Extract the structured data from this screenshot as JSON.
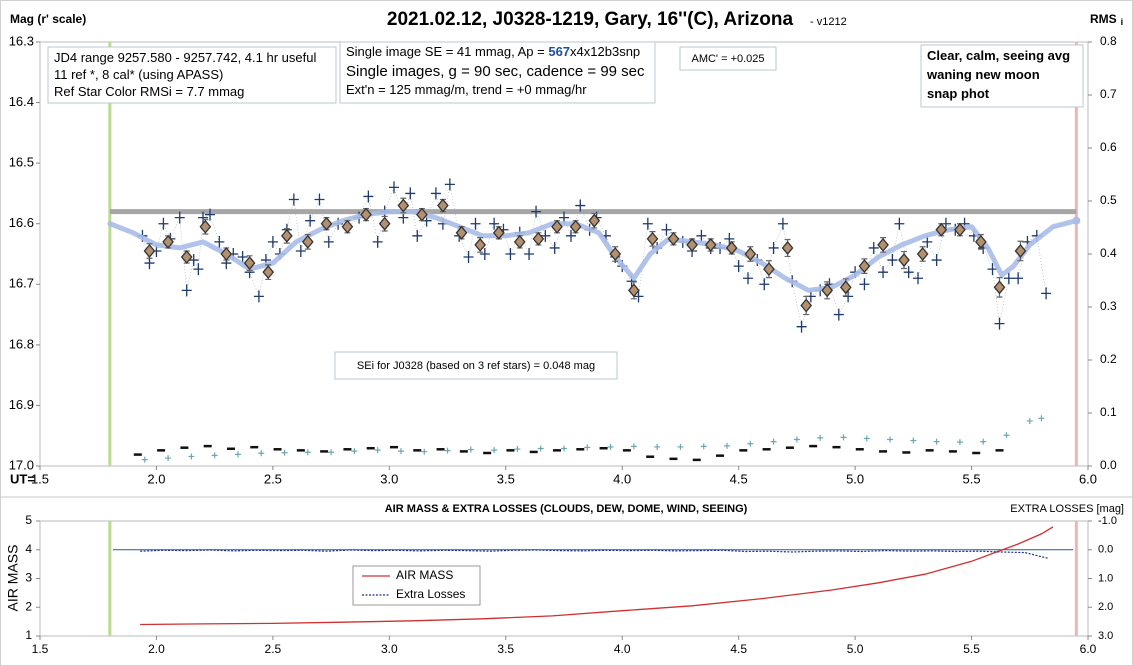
{
  "chart_data": [
    {
      "type": "scatter",
      "title": "2021.02.12, J0328-1219, Gary, 16''(C), Arizona",
      "version": "- v1212",
      "y_label": "Mag (r' scale)",
      "y2_label": "RMS",
      "y2_label_sub": "i",
      "x_label": "UT=",
      "xlim": [
        1.5,
        6.0
      ],
      "xticks": [
        1.5,
        {
          "value": 2,
          "label": "2.0"
        },
        2.5,
        {
          "value": 3,
          "label": "3.0"
        },
        3.5,
        {
          "value": 4,
          "label": "4.0"
        },
        4.5,
        {
          "value": 5,
          "label": "5.0"
        },
        5.5,
        {
          "value": 6,
          "label": "6.0"
        }
      ],
      "ylim": [
        16.3,
        17.0
      ],
      "y_inverted": true,
      "yticks": [
        16.3,
        16.4,
        16.5,
        16.6,
        16.7,
        16.8,
        16.9,
        {
          "value": 17,
          "label": "17.0"
        }
      ],
      "y2lim": [
        0,
        0.8
      ],
      "y2ticks": [
        {
          "value": 0,
          "label": "0.0"
        },
        0.1,
        0.2,
        0.3,
        0.4,
        0.5,
        0.6,
        0.7,
        0.8
      ],
      "start_ut": 1.8,
      "end_ut": 5.95,
      "reference_level": 16.58,
      "annotations": [
        {
          "lines": [
            [
              "JD4 range 9257.580 - 9257.742, 4.1 hr useful"
            ],
            [
              " 11 ref *, 8 cal* (using APASS)"
            ],
            [
              "Ref Star Color RMSi = 7.7 mmag"
            ]
          ]
        },
        {
          "lines": [
            [
              "Single image SE = 41 mmag, Ap = ",
              {
                "text": "567",
                "color": "#1f4e9c"
              },
              "x4x12b3snp"
            ],
            [
              "Single images, g = 90 sec, cadence = 99 sec"
            ],
            [
              "Ext'n = 125 mmag/m, trend = +0 mmag/hr"
            ]
          ]
        },
        {
          "lines": [
            [
              "AMC' = +0.025"
            ]
          ]
        },
        {
          "lines": [
            [
              "Clear, calm, seeing avg"
            ],
            [
              "waning new moon"
            ],
            [
              "snap phot"
            ]
          ]
        },
        {
          "lines": [
            [
              "SEi for J0328 (based on 3 ref stars) = 0.048 mag"
            ]
          ]
        }
      ],
      "series": [
        {
          "style": "cross",
          "color": "#1f3a6e",
          "x": [
            1.94,
            1.97,
            2.0,
            2.03,
            2.06,
            2.1,
            2.13,
            2.16,
            2.18,
            2.2,
            2.23,
            2.27,
            2.3,
            2.33,
            2.37,
            2.4,
            2.44,
            2.47,
            2.5,
            2.53,
            2.56,
            2.59,
            2.62,
            2.66,
            2.7,
            2.74,
            2.78,
            2.82,
            2.87,
            2.91,
            2.95,
            2.98,
            3.02,
            3.06,
            3.09,
            3.12,
            3.16,
            3.2,
            3.23,
            3.26,
            3.3,
            3.34,
            3.37,
            3.41,
            3.45,
            3.49,
            3.52,
            3.56,
            3.6,
            3.63,
            3.67,
            3.71,
            3.75,
            3.78,
            3.82,
            3.86,
            3.89,
            3.93,
            3.97,
            4.0,
            4.04,
            4.07,
            4.11,
            4.15,
            4.19,
            4.22,
            4.26,
            4.3,
            4.34,
            4.38,
            4.42,
            4.46,
            4.5,
            4.54,
            4.58,
            4.61,
            4.65,
            4.69,
            4.73,
            4.77,
            4.81,
            4.85,
            4.89,
            4.93,
            4.97,
            5.0,
            5.04,
            5.08,
            5.12,
            5.16,
            5.19,
            5.23,
            5.27,
            5.31,
            5.35,
            5.39,
            5.43,
            5.47,
            5.51,
            5.55,
            5.59,
            5.62,
            5.66,
            5.7,
            5.74,
            5.78,
            5.82
          ],
          "values": [
            16.62,
            16.665,
            16.645,
            16.6,
            16.625,
            16.59,
            16.71,
            16.66,
            16.675,
            16.59,
            16.585,
            16.63,
            16.665,
            16.65,
            16.655,
            16.68,
            16.72,
            16.66,
            16.63,
            16.65,
            16.61,
            16.56,
            16.645,
            16.595,
            16.56,
            16.63,
            16.6,
            16.605,
            16.59,
            16.555,
            16.63,
            16.58,
            16.54,
            16.59,
            16.55,
            16.62,
            16.595,
            16.55,
            16.6,
            16.535,
            16.62,
            16.655,
            16.6,
            16.65,
            16.6,
            16.61,
            16.65,
            16.615,
            16.65,
            16.58,
            16.62,
            16.64,
            16.59,
            16.62,
            16.57,
            16.61,
            16.59,
            16.62,
            16.655,
            16.67,
            16.695,
            16.72,
            16.6,
            16.64,
            16.61,
            16.625,
            16.63,
            16.645,
            16.62,
            16.64,
            16.64,
            16.625,
            16.67,
            16.69,
            16.66,
            16.7,
            16.64,
            16.6,
            16.695,
            16.77,
            16.72,
            16.71,
            16.7,
            16.75,
            16.72,
            16.68,
            16.7,
            16.64,
            16.68,
            16.66,
            16.6,
            16.68,
            16.69,
            16.63,
            16.66,
            16.6,
            16.61,
            16.6,
            16.62,
            16.64,
            16.675,
            16.765,
            16.69,
            16.69,
            16.63,
            16.62,
            16.715
          ]
        },
        {
          "style": "curve",
          "color": "#a9bde8",
          "x": [
            1.8,
            1.9,
            2.0,
            2.1,
            2.2,
            2.3,
            2.4,
            2.5,
            2.6,
            2.7,
            2.8,
            2.9,
            3.0,
            3.1,
            3.2,
            3.3,
            3.4,
            3.5,
            3.6,
            3.7,
            3.8,
            3.9,
            3.97,
            4.05,
            4.12,
            4.2,
            4.3,
            4.4,
            4.5,
            4.6,
            4.7,
            4.8,
            4.9,
            5.0,
            5.1,
            5.2,
            5.3,
            5.4,
            5.5,
            5.57,
            5.63,
            5.68,
            5.75,
            5.85,
            5.95
          ],
          "values": [
            16.6,
            16.615,
            16.635,
            16.64,
            16.63,
            16.65,
            16.675,
            16.665,
            16.63,
            16.61,
            16.595,
            16.585,
            16.58,
            16.58,
            16.59,
            16.605,
            16.62,
            16.62,
            16.615,
            16.6,
            16.6,
            16.615,
            16.655,
            16.69,
            16.65,
            16.625,
            16.63,
            16.635,
            16.645,
            16.665,
            16.69,
            16.71,
            16.705,
            16.685,
            16.655,
            16.635,
            16.62,
            16.61,
            16.605,
            16.64,
            16.685,
            16.67,
            16.635,
            16.605,
            16.595
          ]
        },
        {
          "style": "diamond",
          "color": "#b5906e",
          "x": [
            1.97,
            2.05,
            2.13,
            2.21,
            2.3,
            2.4,
            2.48,
            2.56,
            2.65,
            2.73,
            2.82,
            2.9,
            2.98,
            3.06,
            3.14,
            3.23,
            3.31,
            3.39,
            3.47,
            3.56,
            3.64,
            3.72,
            3.8,
            3.88,
            3.97,
            4.05,
            4.13,
            4.22,
            4.3,
            4.38,
            4.47,
            4.55,
            4.63,
            4.71,
            4.79,
            4.88,
            4.96,
            5.04,
            5.12,
            5.21,
            5.29,
            5.37,
            5.45,
            5.54,
            5.62,
            5.71
          ],
          "values": [
            16.645,
            16.63,
            16.655,
            16.605,
            16.65,
            16.665,
            16.68,
            16.62,
            16.63,
            16.6,
            16.605,
            16.585,
            16.6,
            16.57,
            16.585,
            16.57,
            16.615,
            16.635,
            16.615,
            16.63,
            16.625,
            16.605,
            16.605,
            16.595,
            16.65,
            16.71,
            16.625,
            16.625,
            16.635,
            16.635,
            16.64,
            16.65,
            16.675,
            16.64,
            16.735,
            16.71,
            16.705,
            16.67,
            16.635,
            16.66,
            16.65,
            16.61,
            16.61,
            16.63,
            16.705,
            16.645
          ],
          "errors": [
            0.012,
            0.01,
            0.01,
            0.012,
            0.01,
            0.012,
            0.012,
            0.012,
            0.012,
            0.01,
            0.01,
            0.01,
            0.012,
            0.012,
            0.01,
            0.01,
            0.01,
            0.012,
            0.01,
            0.01,
            0.01,
            0.01,
            0.01,
            0.012,
            0.012,
            0.014,
            0.012,
            0.01,
            0.01,
            0.01,
            0.01,
            0.012,
            0.014,
            0.014,
            0.015,
            0.014,
            0.014,
            0.012,
            0.012,
            0.014,
            0.012,
            0.01,
            0.01,
            0.012,
            0.016,
            0.016
          ]
        },
        {
          "style": "rms-cross",
          "color": "#6aa8b0",
          "axis": "y2",
          "x": [
            1.95,
            2.05,
            2.15,
            2.25,
            2.35,
            2.45,
            2.55,
            2.65,
            2.75,
            2.85,
            2.95,
            3.05,
            3.15,
            3.25,
            3.35,
            3.45,
            3.55,
            3.65,
            3.75,
            3.85,
            3.95,
            4.05,
            4.15,
            4.25,
            4.35,
            4.45,
            4.55,
            4.65,
            4.75,
            4.85,
            4.95,
            5.05,
            5.15,
            5.25,
            5.35,
            5.45,
            5.55,
            5.65,
            5.75,
            5.8
          ],
          "values": [
            0.012,
            0.015,
            0.018,
            0.02,
            0.022,
            0.024,
            0.025,
            0.026,
            0.026,
            0.028,
            0.03,
            0.028,
            0.027,
            0.029,
            0.031,
            0.03,
            0.032,
            0.033,
            0.033,
            0.035,
            0.036,
            0.037,
            0.036,
            0.036,
            0.037,
            0.038,
            0.042,
            0.046,
            0.05,
            0.053,
            0.054,
            0.052,
            0.05,
            0.048,
            0.046,
            0.045,
            0.046,
            0.058,
            0.085,
            0.09
          ]
        },
        {
          "style": "rms-dash",
          "color": "#111111",
          "axis": "y2",
          "x": [
            1.92,
            2.02,
            2.12,
            2.22,
            2.32,
            2.42,
            2.52,
            2.62,
            2.72,
            2.82,
            2.92,
            3.02,
            3.12,
            3.22,
            3.32,
            3.42,
            3.52,
            3.62,
            3.72,
            3.82,
            3.92,
            4.02,
            4.12,
            4.22,
            4.32,
            4.42,
            4.52,
            4.62,
            4.72,
            4.82,
            4.92,
            5.02,
            5.12,
            5.22,
            5.32,
            5.42,
            5.52,
            5.62
          ],
          "values": [
            0.022,
            0.03,
            0.035,
            0.038,
            0.033,
            0.036,
            0.032,
            0.03,
            0.028,
            0.032,
            0.034,
            0.036,
            0.03,
            0.032,
            0.028,
            0.025,
            0.03,
            0.027,
            0.03,
            0.032,
            0.034,
            0.03,
            0.018,
            0.014,
            0.012,
            0.02,
            0.03,
            0.032,
            0.035,
            0.038,
            0.036,
            0.032,
            0.028,
            0.026,
            0.03,
            0.028,
            0.025,
            0.03
          ]
        }
      ]
    },
    {
      "type": "line",
      "title": "AIR MASS & EXTRA LOSSES (CLOUDS, DEW, DOME, WIND, SEEING)",
      "y_label": "AIR MASS",
      "y2_label": "EXTRA LOSSES [mag]",
      "xlim": [
        1.5,
        6.0
      ],
      "xticks": [
        1.5,
        {
          "value": 2,
          "label": "2.0"
        },
        2.5,
        {
          "value": 3,
          "label": "3.0"
        },
        3.5,
        {
          "value": 4,
          "label": "4.0"
        },
        4.5,
        {
          "value": 5,
          "label": "5.0"
        },
        5.5,
        {
          "value": 6,
          "label": "6.0"
        }
      ],
      "ylim": [
        1,
        5
      ],
      "yticks": [
        1,
        2,
        3,
        4,
        5
      ],
      "y2lim": [
        -1,
        3
      ],
      "y2_inverted": true,
      "y2ticks": [
        {
          "value": -1,
          "label": "-1.0"
        },
        {
          "value": 0,
          "label": "0.0"
        },
        {
          "value": 1,
          "label": "1.0"
        },
        {
          "value": 2,
          "label": "2.0"
        },
        {
          "value": 3,
          "label": "3.0"
        }
      ],
      "start_ut": 1.8,
      "end_ut": 5.95,
      "series": [
        {
          "name": "AIR MASS",
          "color": "#d03030",
          "x": [
            1.93,
            2.2,
            2.5,
            2.8,
            3.1,
            3.4,
            3.7,
            4.0,
            4.3,
            4.6,
            4.9,
            5.1,
            5.3,
            5.5,
            5.6,
            5.7,
            5.8,
            5.85
          ],
          "values": [
            1.4,
            1.42,
            1.44,
            1.48,
            1.53,
            1.6,
            1.7,
            1.88,
            2.05,
            2.3,
            2.6,
            2.85,
            3.15,
            3.6,
            3.9,
            4.2,
            4.55,
            4.8
          ]
        },
        {
          "name": "Extra Losses",
          "color": "#1f2f8f",
          "axis": "y2",
          "x": [
            1.93,
            2.03,
            2.13,
            2.23,
            2.33,
            2.43,
            2.53,
            2.63,
            2.73,
            2.83,
            2.93,
            3.03,
            3.13,
            3.23,
            3.33,
            3.43,
            3.53,
            3.63,
            3.73,
            3.83,
            3.93,
            4.03,
            4.13,
            4.23,
            4.33,
            4.43,
            4.53,
            4.63,
            4.73,
            4.83,
            4.93,
            5.03,
            5.13,
            5.23,
            5.33,
            5.43,
            5.53,
            5.63,
            5.73,
            5.83
          ],
          "values": [
            0.05,
            0.02,
            0.03,
            0.01,
            0.04,
            0.02,
            0.03,
            0.02,
            0.05,
            0.01,
            0.03,
            0.02,
            0.04,
            0.02,
            0.03,
            0.05,
            0.02,
            0.01,
            0.03,
            0.04,
            0.02,
            0.03,
            0.02,
            0.04,
            0.03,
            0.02,
            0.06,
            0.05,
            0.08,
            0.05,
            0.04,
            0.06,
            0.03,
            0.05,
            0.04,
            0.06,
            0.05,
            0.08,
            0.1,
            0.3
          ]
        }
      ]
    }
  ]
}
